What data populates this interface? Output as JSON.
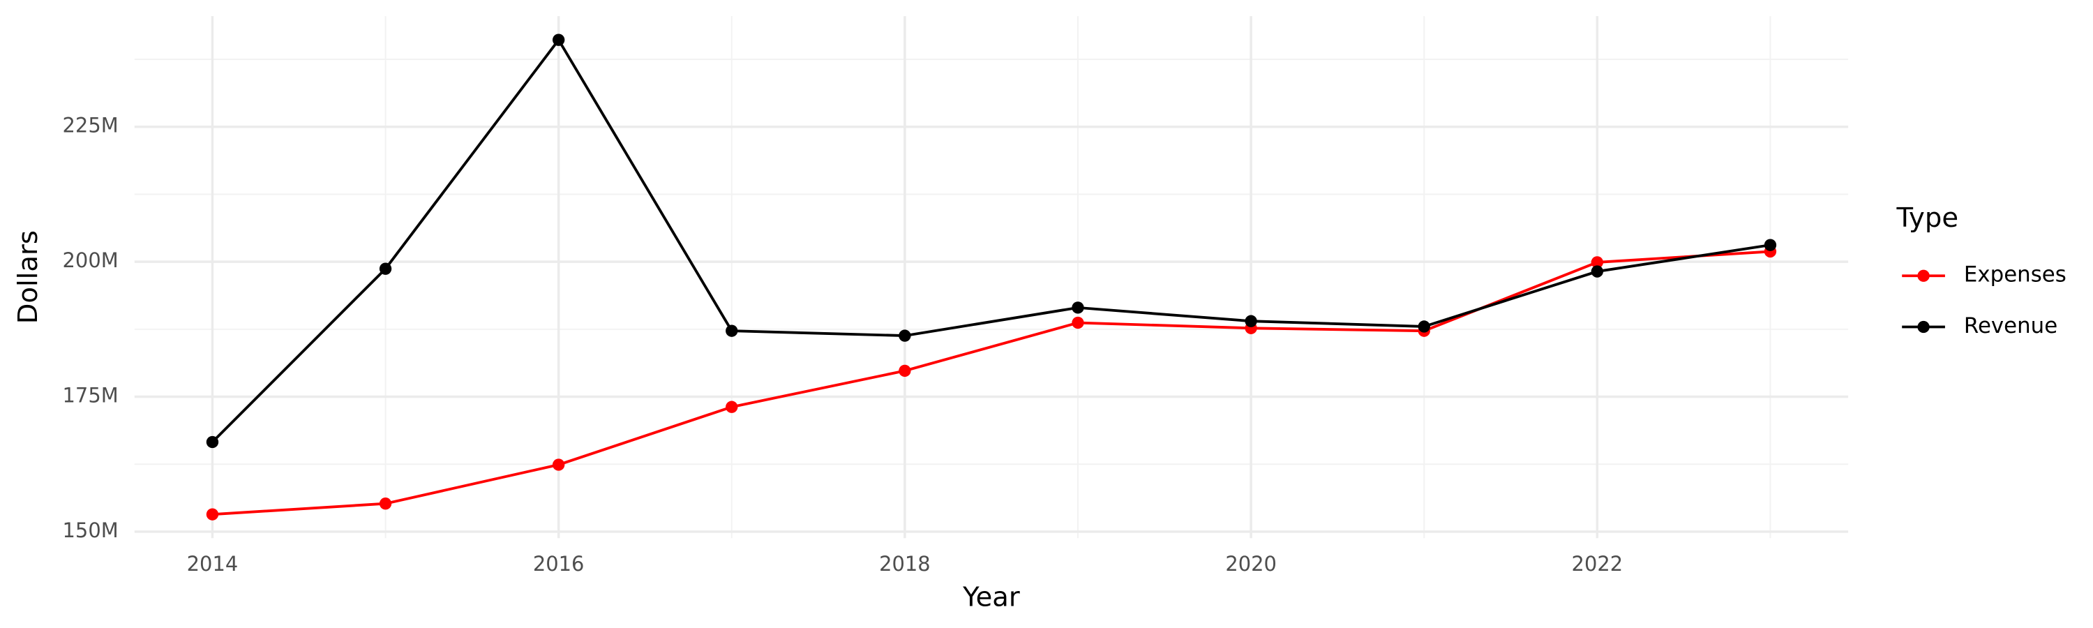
{
  "chart_data": {
    "type": "line",
    "x_label": "Year",
    "y_label": "Dollars",
    "legend_title": "Type",
    "x": [
      2014,
      2015,
      2016,
      2017,
      2018,
      2019,
      2020,
      2021,
      2022,
      2023
    ],
    "series": [
      {
        "name": "Expenses",
        "color": "#ff0000",
        "values": [
          153200000,
          155200000,
          162400000,
          173100000,
          179800000,
          188700000,
          187700000,
          187200000,
          199900000,
          201900000
        ]
      },
      {
        "name": "Revenue",
        "color": "#000000",
        "values": [
          166600000,
          198700000,
          241100000,
          187200000,
          186300000,
          191500000,
          189000000,
          188000000,
          198200000,
          203100000
        ]
      }
    ],
    "xlim": [
      2013.55,
      2023.45
    ],
    "xticks": [
      2014,
      2016,
      2018,
      2020,
      2022
    ],
    "ylim": [
      148800000,
      245500000
    ],
    "yticks": [
      {
        "value": 150000000,
        "label": "150M"
      },
      {
        "value": 175000000,
        "label": "175M"
      },
      {
        "value": 200000000,
        "label": "200M"
      },
      {
        "value": 225000000,
        "label": "225M"
      }
    ],
    "grid": true,
    "legend": "right"
  }
}
